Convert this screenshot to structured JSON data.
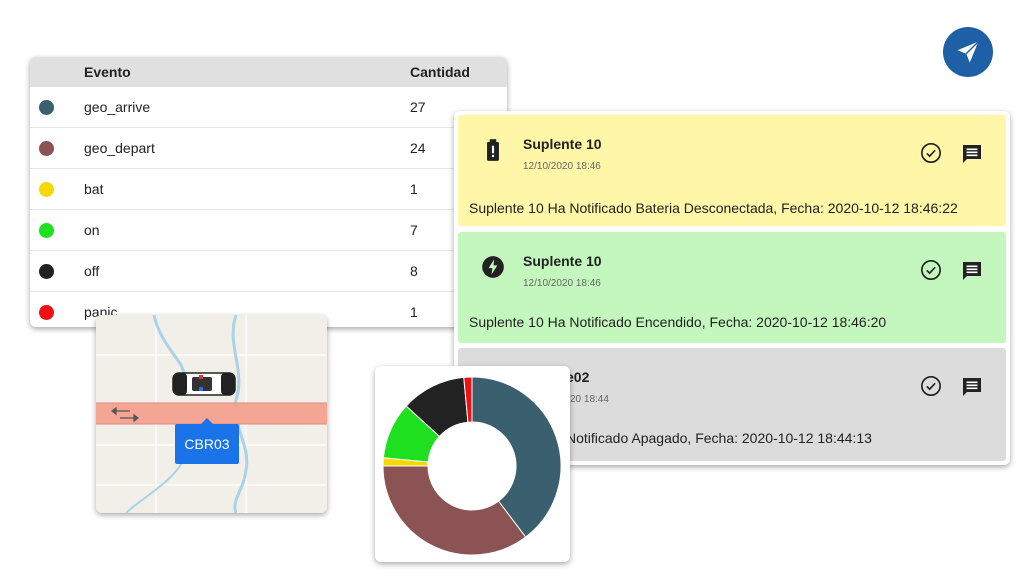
{
  "table": {
    "headers": {
      "event": "Evento",
      "count": "Cantidad"
    },
    "rows": [
      {
        "name": "geo_arrive",
        "count": "27",
        "color": "#3a5f6e"
      },
      {
        "name": "geo_depart",
        "count": "24",
        "color": "#8b5353"
      },
      {
        "name": "bat",
        "count": "1",
        "color": "#f5d800"
      },
      {
        "name": "on",
        "count": "7",
        "color": "#1ee01e"
      },
      {
        "name": "off",
        "count": "8",
        "color": "#222222"
      },
      {
        "name": "panic",
        "count": "1",
        "color": "#ee1111"
      }
    ]
  },
  "notifications": [
    {
      "title": "Suplente 10",
      "time": "12/10/2020 18:46",
      "message": "Suplente 10 Ha Notificado Bateria Desconectada, Fecha: 2020-10-12 18:46:22",
      "bg": "#fff6a8",
      "icon": "battery-alert-icon"
    },
    {
      "title": "Suplente 10",
      "time": "12/10/2020 18:46",
      "message": "Suplente 10 Ha Notificado Encendido, Fecha: 2020-10-12 18:46:20",
      "bg": "#c3f7bd",
      "icon": "power-bolt-icon"
    },
    {
      "title": "e02",
      "time": "20 18:44",
      "message": "Notificado Apagado, Fecha: 2020-10-12 18:44:13",
      "bg": "#dcdcdc",
      "icon": "none"
    }
  ],
  "map": {
    "vehicle_label": "CBR03"
  },
  "chart_data": {
    "type": "pie",
    "donut": true,
    "categories": [
      "geo_arrive",
      "geo_depart",
      "bat",
      "on",
      "off",
      "panic"
    ],
    "values": [
      27,
      24,
      1,
      7,
      8,
      1
    ],
    "colors": [
      "#3a5f6e",
      "#8b5353",
      "#f5d800",
      "#1ee01e",
      "#222222",
      "#ee1111"
    ]
  }
}
